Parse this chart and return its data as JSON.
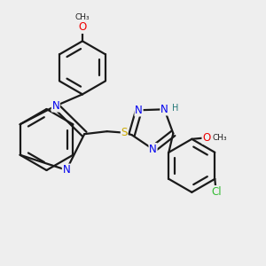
{
  "bg": "#eeeeee",
  "bond_color": "#1a1a1a",
  "colors": {
    "N": "#0000ee",
    "O": "#ee0000",
    "S": "#ccaa00",
    "Cl": "#33bb33",
    "H": "#227777",
    "C": "#1a1a1a"
  },
  "lw": 1.6,
  "sep": 0.022,
  "fs": 8.5
}
